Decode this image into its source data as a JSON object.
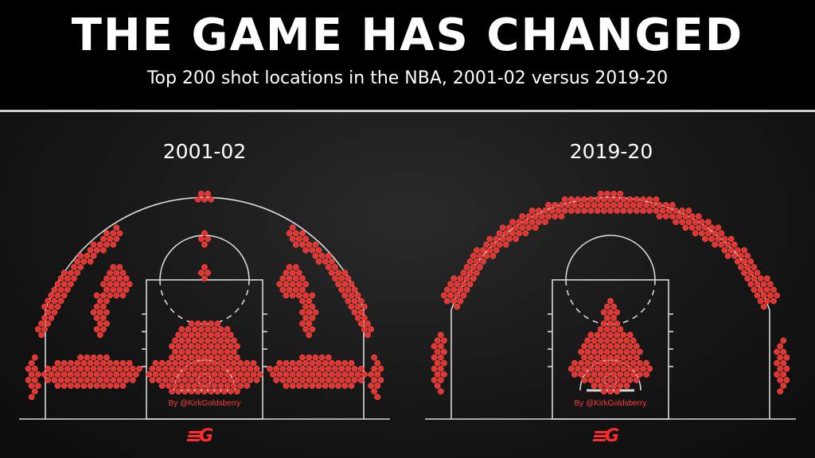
{
  "header": {
    "title": "THE GAME HAS CHANGED",
    "subtitle": "Top 200 shot locations in the NBA, 2001-02 versus 2019-20"
  },
  "credit": "By @KirkGoldsberry",
  "logo_icon": "ng-logo-icon",
  "colors": {
    "dot": "#e8322f",
    "dot_stroke": "#ff6a5e",
    "court_line": "#d8d8d8",
    "background": "#151515"
  },
  "chart_data": [
    {
      "type": "scatter",
      "title": "2001-02",
      "description_note": "",
      "clusters": [
        {
          "zone": "restricted-area/paint",
          "level": "dense"
        },
        {
          "zone": "mid-range baseline left",
          "level": "dense"
        },
        {
          "zone": "mid-range baseline right",
          "level": "dense"
        },
        {
          "zone": "mid-range elbows",
          "level": "medium"
        },
        {
          "zone": "left corner three",
          "level": "low"
        },
        {
          "zone": "right corner three",
          "level": "low"
        },
        {
          "zone": "above-break three wings",
          "level": "medium"
        },
        {
          "zone": "top of key three",
          "level": "low"
        }
      ]
    },
    {
      "type": "scatter",
      "title": "2019-20",
      "clusters": [
        {
          "zone": "restricted-area/paint",
          "level": "dense"
        },
        {
          "zone": "left corner three",
          "level": "medium"
        },
        {
          "zone": "right corner three",
          "level": "medium"
        },
        {
          "zone": "above-break three arc",
          "level": "dense"
        }
      ]
    }
  ]
}
